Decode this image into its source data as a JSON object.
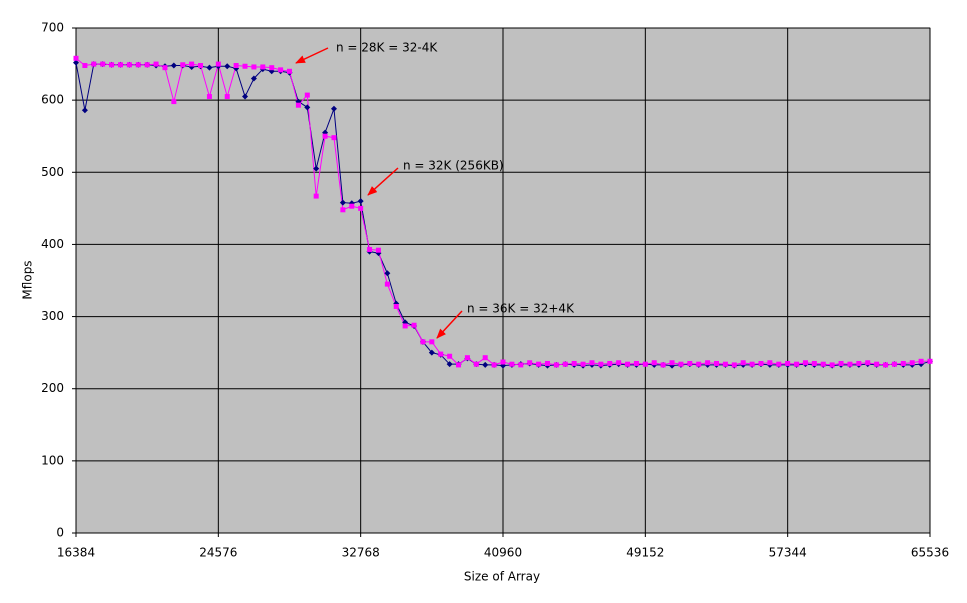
{
  "chart_data": {
    "type": "line",
    "xlabel": "Size of Array",
    "ylabel": "Mflops",
    "x": [
      16384,
      16896,
      17408,
      17920,
      18432,
      18944,
      19456,
      19968,
      20480,
      20992,
      21504,
      22016,
      22528,
      23040,
      23552,
      24064,
      24576,
      25088,
      25600,
      26112,
      26624,
      27136,
      27648,
      28160,
      28672,
      29184,
      29696,
      30208,
      30720,
      31232,
      31744,
      32256,
      32768,
      33280,
      33792,
      34304,
      34816,
      35328,
      35840,
      36352,
      36864,
      37376,
      37888,
      38400,
      38912,
      39424,
      39936,
      40448,
      40960,
      41472,
      41984,
      42496,
      43008,
      43520,
      44032,
      44544,
      45056,
      45568,
      46080,
      46592,
      47104,
      47616,
      48128,
      48640,
      49152,
      49664,
      50176,
      50688,
      51200,
      51712,
      52224,
      52736,
      53248,
      53760,
      54272,
      54784,
      55296,
      55808,
      56320,
      56832,
      57344,
      57856,
      58368,
      58880,
      59392,
      59904,
      60416,
      60928,
      61440,
      61952,
      62464,
      62976,
      63488,
      64000,
      64512,
      65024,
      65536
    ],
    "series": [
      {
        "color": "#000080",
        "marker": "diamond",
        "values": [
          652,
          586,
          650,
          650,
          649,
          649,
          649,
          649,
          649,
          648,
          647,
          648,
          648,
          646,
          647,
          645,
          647,
          647,
          644,
          605,
          630,
          643,
          640,
          640,
          638,
          598,
          590,
          505,
          555,
          588,
          458,
          457,
          460,
          390,
          388,
          360,
          318,
          292,
          287,
          265,
          250,
          247,
          234,
          234,
          242,
          234,
          233,
          233,
          232,
          233,
          234,
          235,
          233,
          232,
          233,
          234,
          233,
          232,
          233,
          232,
          233,
          234,
          233,
          233,
          234,
          233,
          233,
          232,
          233,
          234,
          233,
          233,
          233,
          233,
          232,
          233,
          233,
          234,
          233,
          233,
          233,
          233,
          234,
          233,
          233,
          232,
          233,
          233,
          233,
          234,
          233,
          233,
          234,
          233,
          233,
          234,
          238
        ]
      },
      {
        "color": "#ff00ff",
        "marker": "square",
        "values": [
          658,
          648,
          650,
          650,
          649,
          649,
          649,
          649,
          649,
          650,
          645,
          598,
          649,
          650,
          648,
          605,
          650,
          605,
          648,
          647,
          646,
          646,
          645,
          642,
          640,
          593,
          607,
          467,
          550,
          548,
          448,
          453,
          450,
          393,
          392,
          345,
          314,
          287,
          288,
          265,
          265,
          248,
          245,
          233,
          243,
          234,
          243,
          233,
          237,
          234,
          233,
          236,
          234,
          235,
          233,
          234,
          235,
          234,
          236,
          234,
          235,
          236,
          234,
          235,
          234,
          236,
          233,
          236,
          234,
          235,
          234,
          236,
          235,
          234,
          233,
          236,
          234,
          235,
          236,
          234,
          235,
          234,
          236,
          235,
          234,
          233,
          235,
          234,
          235,
          236,
          234,
          233,
          234,
          235,
          236,
          238,
          238
        ]
      }
    ],
    "xlim": [
      16384,
      65536
    ],
    "xticks": [
      16384,
      24576,
      32768,
      40960,
      49152,
      57344,
      65536
    ],
    "ylim": [
      0,
      700
    ],
    "yticks": [
      0,
      100,
      200,
      300,
      400,
      500,
      600,
      700
    ],
    "grid": true,
    "annotations": [
      "n = 28K = 32-4K",
      "n = 32K (256KB)",
      "n = 36K = 32+4K"
    ]
  }
}
